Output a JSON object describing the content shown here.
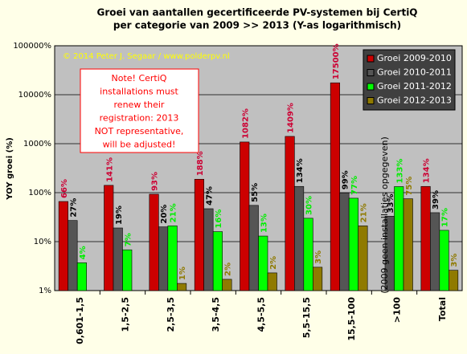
{
  "chart_data": {
    "type": "bar",
    "title": [
      "Groei van aantallen gecertificeerde PV-systemen bij CertiQ",
      "per categorie van 2009 >> 2013 (Y-as logarithmisch)"
    ],
    "y_label": "YOY groei (%)",
    "credit": "© 2014 Peter J. Segaar / www.polderpv.nl",
    "note": [
      "Note! CertiQ",
      "installations  must",
      "renew their",
      "registration: 2013",
      "NOT representative,",
      "will be adjusted!"
    ],
    "annotation": "(2009 geen installaties opgegeven)",
    "log_scale": true,
    "grid": true,
    "legend": "upper right",
    "categories": [
      "0,601-1,5",
      "1,5-2,5",
      "2,5-3,5",
      "3,5-4,5",
      "4,5-5,5",
      "5,5-15,5",
      "15,5-100",
      ">100",
      "Total"
    ],
    "series": [
      {
        "name": "Groei 2009-2010",
        "color": "#cc0000",
        "label_color": "#cc0033",
        "values": [
          66,
          141,
          93,
          188,
          1082,
          1409,
          17500,
          null,
          134
        ],
        "value_labels": [
          "66%",
          "141%",
          "93%",
          "188%",
          "1082%",
          "1409%",
          "17500%",
          null,
          "134%"
        ]
      },
      {
        "name": "Groei 2010-2011",
        "color": "#555555",
        "label_color": "#000000",
        "values": [
          27,
          19,
          20,
          47,
          55,
          134,
          99,
          33,
          39
        ],
        "value_labels": [
          "27%",
          "19%",
          "20%",
          "47%",
          "55%",
          "134%",
          "99%",
          "33%",
          "39%"
        ]
      },
      {
        "name": "Groei 2011-2012",
        "color": "#00ff00",
        "label_color": "#00ee00",
        "values": [
          3.7,
          6.8,
          21,
          16,
          13,
          30,
          77,
          133,
          17
        ],
        "value_labels": [
          "4%",
          "7%",
          "21%",
          "16%",
          "13%",
          "30%",
          "77%",
          "133%",
          "17%"
        ]
      },
      {
        "name": "Groei 2012-2013",
        "color": "#8f7a00",
        "label_color": "#8f7a00",
        "values": [
          null,
          null,
          1.4,
          1.7,
          2.3,
          3,
          21,
          75,
          2.6
        ],
        "value_labels": [
          null,
          null,
          "1%",
          "2%",
          "2%",
          "3%",
          "21%",
          "75%",
          "3%"
        ]
      }
    ],
    "ylim": [
      1,
      100000
    ],
    "yticks": [
      {
        "value": 1,
        "label": "1%"
      },
      {
        "value": 10,
        "label": "10%"
      },
      {
        "value": 100,
        "label": "100%"
      },
      {
        "value": 1000,
        "label": "1000%"
      },
      {
        "value": 10000,
        "label": "10000%"
      },
      {
        "value": 100000,
        "label": "100000%"
      }
    ]
  }
}
